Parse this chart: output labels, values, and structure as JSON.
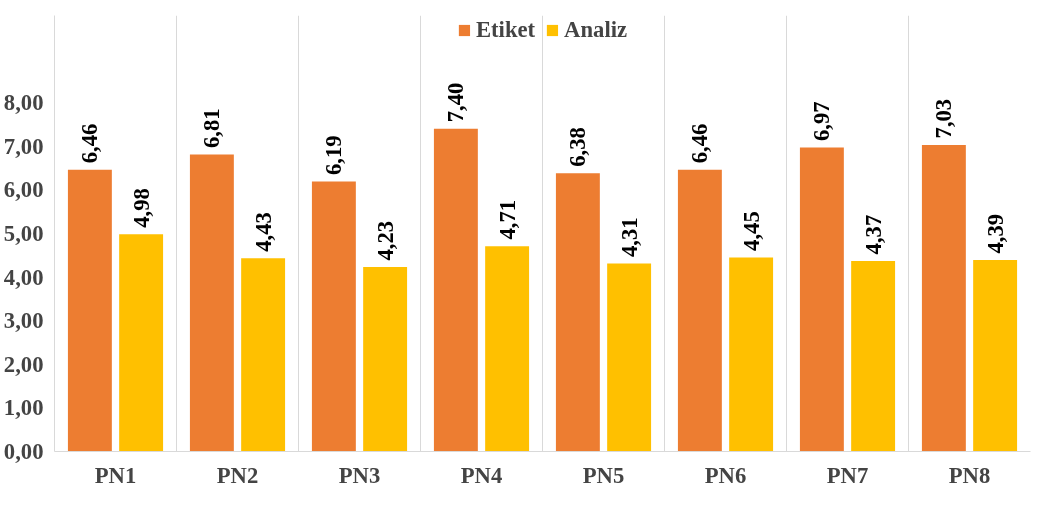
{
  "chart_data": {
    "type": "bar",
    "categories": [
      "PN1",
      "PN2",
      "PN3",
      "PN4",
      "PN5",
      "PN6",
      "PN7",
      "PN8"
    ],
    "series": [
      {
        "name": "Etiket",
        "color": "#ed7d31",
        "values": [
          6.46,
          6.81,
          6.19,
          7.4,
          6.38,
          6.46,
          6.97,
          7.03
        ],
        "value_labels": [
          "6,46",
          "6,81",
          "6,19",
          "7,40",
          "6,38",
          "6,46",
          "6,97",
          "7,03"
        ]
      },
      {
        "name": "Analiz",
        "color": "#ffc000",
        "values": [
          4.98,
          4.43,
          4.23,
          4.71,
          4.31,
          4.45,
          4.37,
          4.39
        ],
        "value_labels": [
          "4,98",
          "4,43",
          "4,23",
          "4,71",
          "4,31",
          "4,45",
          "4,37",
          "4,39"
        ]
      }
    ],
    "ylim": [
      0,
      10
    ],
    "yticks": [
      {
        "value": 0,
        "label": "0,00"
      },
      {
        "value": 1,
        "label": "1,00"
      },
      {
        "value": 2,
        "label": "2,00"
      },
      {
        "value": 3,
        "label": "3,00"
      },
      {
        "value": 4,
        "label": "4,00"
      },
      {
        "value": 5,
        "label": "5,00"
      },
      {
        "value": 6,
        "label": "6,00"
      },
      {
        "value": 7,
        "label": "7,00"
      },
      {
        "value": 8,
        "label": "8,00"
      }
    ],
    "grid": "x",
    "legend": "top"
  }
}
